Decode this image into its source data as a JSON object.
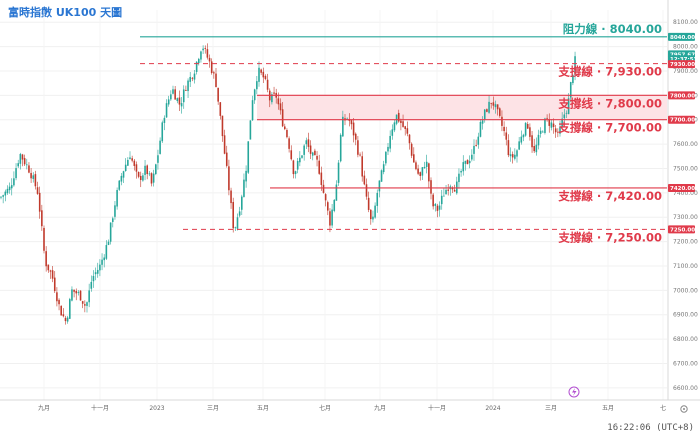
{
  "title": "富時指數 UK100 天圖",
  "time_readout": "16:22:06 (UTC+8)",
  "colors": {
    "up": "#26a69a",
    "down": "#c0392b",
    "resistance": "#26a69a",
    "support": "#e03a4a",
    "zone_fill": "#fde3e6",
    "title": "#2a76d2"
  },
  "chart_data": {
    "type": "candlestick",
    "ylim": [
      6550,
      8150
    ],
    "y_ticks": [
      6600,
      6700,
      6800,
      6900,
      7000,
      7100,
      7200,
      7300,
      7400,
      7500,
      7600,
      7700,
      7800,
      7900,
      8000,
      8100
    ],
    "x_ticks": [
      "九月",
      "十一月",
      "2023",
      "三月",
      "五月",
      "七月",
      "九月",
      "十一月",
      "2024",
      "三月",
      "五月",
      "七"
    ],
    "price_tags": [
      {
        "label": "8040.00",
        "value": 8040,
        "color": "#26a69a"
      },
      {
        "label": "7957.67",
        "value": 7968,
        "color": "#26a69a"
      },
      {
        "label": "12:37:53",
        "value": 7948,
        "color": "#26a69a"
      },
      {
        "label": "7930.00",
        "value": 7928,
        "color": "#e03a4a"
      },
      {
        "label": "7800.00",
        "value": 7800,
        "color": "#e03a4a"
      },
      {
        "label": "7700.00",
        "value": 7700,
        "color": "#e03a4a"
      },
      {
        "label": "7420.00",
        "value": 7420,
        "color": "#e03a4a"
      },
      {
        "label": "7250.00",
        "value": 7250,
        "color": "#e03a4a"
      }
    ],
    "levels": [
      {
        "name": "resistance",
        "value": 8040,
        "text": "阻力線 · 8040.00",
        "style": "solid",
        "color": "#26a69a",
        "x_start_frac": 0.21
      },
      {
        "name": "support-7930",
        "value": 7930,
        "text": "支撐線 · 7,930.00",
        "style": "dashed",
        "color": "#e03a4a",
        "x_start_frac": 0.21
      },
      {
        "name": "support-7800",
        "value": 7800,
        "text": "支撐线 · 7,800.00",
        "style": "solid",
        "color": "#e03a4a",
        "x_start_frac": 0.385
      },
      {
        "name": "support-7700",
        "value": 7700,
        "text": "支撐線 · 7,700.00",
        "style": "solid",
        "color": "#e03a4a",
        "x_start_frac": 0.385
      },
      {
        "name": "support-7420",
        "value": 7420,
        "text": "支撐線 · 7,420.00",
        "style": "solid",
        "color": "#e03a4a",
        "x_start_frac": 0.405
      },
      {
        "name": "support-7250",
        "value": 7250,
        "text": "支撐線 · 7,250.00",
        "style": "dashed",
        "color": "#e03a4a",
        "x_start_frac": 0.275
      }
    ],
    "zone": {
      "from": 7700,
      "to": 7800
    },
    "path_keys": [
      [
        0,
        7380
      ],
      [
        10,
        7420
      ],
      [
        20,
        7560
      ],
      [
        30,
        7490
      ],
      [
        38,
        7400
      ],
      [
        45,
        7120
      ],
      [
        52,
        7060
      ],
      [
        60,
        6920
      ],
      [
        66,
        6870
      ],
      [
        72,
        7000
      ],
      [
        80,
        6980
      ],
      [
        86,
        6930
      ],
      [
        92,
        7050
      ],
      [
        100,
        7100
      ],
      [
        108,
        7200
      ],
      [
        116,
        7380
      ],
      [
        122,
        7480
      ],
      [
        130,
        7560
      ],
      [
        138,
        7450
      ],
      [
        146,
        7500
      ],
      [
        152,
        7430
      ],
      [
        158,
        7560
      ],
      [
        164,
        7720
      ],
      [
        172,
        7830
      ],
      [
        180,
        7760
      ],
      [
        186,
        7840
      ],
      [
        194,
        7900
      ],
      [
        202,
        8010
      ],
      [
        210,
        7930
      ],
      [
        216,
        7850
      ],
      [
        222,
        7650
      ],
      [
        228,
        7450
      ],
      [
        234,
        7240
      ],
      [
        240,
        7350
      ],
      [
        246,
        7500
      ],
      [
        252,
        7780
      ],
      [
        258,
        7900
      ],
      [
        264,
        7870
      ],
      [
        270,
        7780
      ],
      [
        276,
        7800
      ],
      [
        282,
        7700
      ],
      [
        288,
        7620
      ],
      [
        294,
        7480
      ],
      [
        300,
        7540
      ],
      [
        306,
        7610
      ],
      [
        312,
        7550
      ],
      [
        318,
        7520
      ],
      [
        324,
        7390
      ],
      [
        330,
        7280
      ],
      [
        336,
        7420
      ],
      [
        342,
        7690
      ],
      [
        348,
        7710
      ],
      [
        354,
        7640
      ],
      [
        360,
        7540
      ],
      [
        366,
        7380
      ],
      [
        372,
        7260
      ],
      [
        378,
        7420
      ],
      [
        384,
        7510
      ],
      [
        390,
        7640
      ],
      [
        396,
        7720
      ],
      [
        402,
        7680
      ],
      [
        408,
        7630
      ],
      [
        414,
        7520
      ],
      [
        420,
        7460
      ],
      [
        426,
        7540
      ],
      [
        432,
        7350
      ],
      [
        438,
        7330
      ],
      [
        444,
        7400
      ],
      [
        450,
        7440
      ],
      [
        456,
        7420
      ],
      [
        462,
        7500
      ],
      [
        468,
        7530
      ],
      [
        474,
        7580
      ],
      [
        480,
        7670
      ],
      [
        486,
        7740
      ],
      [
        492,
        7780
      ],
      [
        498,
        7720
      ],
      [
        504,
        7650
      ],
      [
        510,
        7540
      ],
      [
        516,
        7560
      ],
      [
        522,
        7650
      ],
      [
        528,
        7680
      ],
      [
        534,
        7560
      ],
      [
        540,
        7640
      ],
      [
        546,
        7700
      ],
      [
        552,
        7680
      ],
      [
        558,
        7630
      ],
      [
        564,
        7720
      ],
      [
        568,
        7760
      ],
      [
        572,
        7880
      ],
      [
        576,
        7960
      ]
    ]
  }
}
